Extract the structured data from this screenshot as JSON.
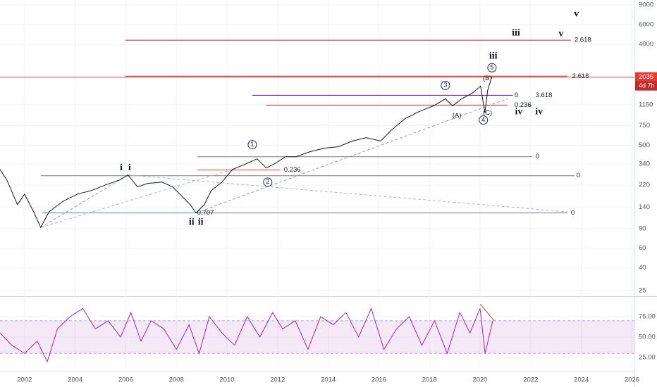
{
  "chart_data": {
    "type": "line",
    "log_scale": true,
    "color": "#131722",
    "xlim": [
      2001.03,
      2026.1
    ],
    "xticks": [
      2002,
      2004,
      2006,
      2008,
      2010,
      2012,
      2014,
      2016,
      2018,
      2020,
      2022,
      2024,
      2026
    ],
    "ylim": [
      22.3,
      9965
    ],
    "yticks": [
      9000,
      6000,
      4000,
      1150,
      750,
      500,
      340,
      220,
      140,
      90,
      60,
      40,
      25
    ],
    "grid": true,
    "x": [
      2001.03,
      2001.3,
      2001.72,
      2002.0,
      2002.36,
      2002.64,
      2002.97,
      2003.53,
      2004.09,
      2004.65,
      2005.2,
      2005.76,
      2006.09,
      2006.46,
      2006.87,
      2007.43,
      2007.85,
      2008.27,
      2008.55,
      2008.77,
      2009.1,
      2009.38,
      2009.8,
      2010.22,
      2010.77,
      2011.19,
      2011.55,
      2011.89,
      2012.31,
      2012.72,
      2013.28,
      2013.84,
      2014.4,
      2014.95,
      2015.51,
      2016.07,
      2016.48,
      2017.04,
      2017.6,
      2018.16,
      2018.63,
      2018.91,
      2019.27,
      2019.69,
      2020.02,
      2020.19,
      2020.3,
      2020.47
    ],
    "values": [
      304,
      245,
      147,
      183,
      127,
      92,
      127,
      158,
      183,
      197,
      221,
      245,
      271,
      212,
      228,
      234,
      212,
      170,
      147,
      124,
      147,
      197,
      234,
      304,
      342,
      378,
      313,
      342,
      395,
      395,
      438,
      471,
      485,
      545,
      585,
      545,
      677,
      867,
      1003,
      1127,
      1302,
      1127,
      1302,
      1462,
      1691,
      974,
      1550,
      2074
    ],
    "last_price": 2035,
    "countdown": "4d 7h",
    "levels": [
      {
        "x": [
          2005.98,
          2023.59
        ],
        "value": 4351,
        "color": "#c62828"
      },
      {
        "x": [
          2005.98,
          2023.45
        ],
        "value": 2074,
        "color": "#c62828"
      },
      {
        "x": [
          2011.0,
          2021.3
        ],
        "value": 1400,
        "color": "#4a148c"
      },
      {
        "x": [
          2011.55,
          2021.08
        ],
        "value": 1144,
        "color": "#c62828"
      },
      {
        "x": [
          2008.82,
          2022.06
        ],
        "value": 395,
        "color": "#787b86"
      },
      {
        "x": [
          2002.64,
          2023.73
        ],
        "value": 267,
        "color": "#787b86"
      },
      {
        "x": [
          2008.82,
          2012.11
        ],
        "value": 300,
        "color": "#e53935"
      },
      {
        "x": [
          2002.7,
          2008.96
        ],
        "value": 124,
        "color": "#26a69a"
      },
      {
        "x": [
          2008.96,
          2023.45
        ],
        "value": 124,
        "color": "#787b86"
      }
    ],
    "trendlines": [
      {
        "x": [
          2002.64,
          2006.09
        ],
        "values": [
          92,
          271
        ],
        "color": "#9598a1"
      },
      {
        "x": [
          2006.09,
          2023.45
        ],
        "values": [
          271,
          127
        ],
        "color": "#b2b5be"
      },
      {
        "x": [
          2008.77,
          2021.08
        ],
        "values": [
          124,
          1302
        ],
        "color": "#9598a1"
      },
      {
        "x": [
          2002.64,
          2010.22
        ],
        "values": [
          92,
          304
        ],
        "color": "#b2b5be"
      }
    ],
    "texts": [
      {
        "text": "2.618",
        "x": 2023.73,
        "y": 4351,
        "color": "#c62828"
      },
      {
        "text": "2.618",
        "x": 2023.64,
        "y": 2074,
        "color": "#c62828"
      },
      {
        "text": "0",
        "x": 2021.36,
        "y": 1400,
        "color": "#787b86"
      },
      {
        "text": "3.618",
        "x": 2022.19,
        "y": 1400,
        "color": "#ab47bc"
      },
      {
        "text": "0.236",
        "x": 2021.36,
        "y": 1144,
        "color": "#c62828"
      },
      {
        "text": "0",
        "x": 2022.19,
        "y": 395,
        "color": "#787b86"
      },
      {
        "text": "0",
        "x": 2023.81,
        "y": 267,
        "color": "#787b86"
      },
      {
        "text": "0.236",
        "x": 2012.25,
        "y": 300,
        "color": "#c62828"
      },
      {
        "text": "0.707",
        "x": 2008.82,
        "y": 124,
        "color": "#26a69a"
      },
      {
        "text": "0",
        "x": 2023.59,
        "y": 124,
        "color": "#787b86"
      },
      {
        "text": "i",
        "x": 2005.82,
        "y": 313,
        "color": "#1a237e",
        "bold": true
      },
      {
        "text": "i",
        "x": 2006.15,
        "y": 313,
        "color": "#c62828",
        "bold": true
      },
      {
        "text": "ii",
        "x": 2008.6,
        "y": 102,
        "color": "#1a237e",
        "bold": true
      },
      {
        "text": "ii",
        "x": 2008.96,
        "y": 102,
        "color": "#c62828",
        "bold": true
      },
      {
        "text": "1",
        "x": 2011.0,
        "y": 506,
        "color": "#1a237e",
        "circle": true
      },
      {
        "text": "2",
        "x": 2011.61,
        "y": 234,
        "color": "#1a237e",
        "circle": true
      },
      {
        "text": "3",
        "x": 2018.63,
        "y": 1716,
        "color": "#1a237e",
        "circle": true
      },
      {
        "text": "4",
        "x": 2020.13,
        "y": 842,
        "color": "#1a237e",
        "circle": true
      },
      {
        "text": "5",
        "x": 2020.47,
        "y": 2468,
        "color": "#1a237e",
        "circle": true
      },
      {
        "text": "(A)",
        "x": 2018.91,
        "y": 919,
        "color": "#3949ab"
      },
      {
        "text": "(B)",
        "x": 2020.11,
        "y": 1985,
        "color": "#3949ab"
      },
      {
        "text": "(C)",
        "x": 2020.11,
        "y": 974,
        "color": "#3949ab"
      },
      {
        "text": "iii",
        "x": 2020.52,
        "y": 3115,
        "color": "#1a237e",
        "bold": true
      },
      {
        "text": "iii",
        "x": 2021.42,
        "y": 5033,
        "color": "#c62828",
        "bold": true
      },
      {
        "text": "v",
        "x": 2023.2,
        "y": 4960,
        "color": "#1a237e",
        "bold": true
      },
      {
        "text": "v",
        "x": 2023.81,
        "y": 7450,
        "color": "#c62828",
        "bold": true
      },
      {
        "text": "iv",
        "x": 2021.53,
        "y": 988,
        "color": "#1a237e",
        "bold": true
      },
      {
        "text": "iv",
        "x": 2022.33,
        "y": 988,
        "color": "#c62828",
        "bold": true
      }
    ],
    "rsi": {
      "color": "#9c27b0",
      "ylim": [
        13,
        100
      ],
      "yticks": [
        {
          "value": 75,
          "label": "75.00"
        },
        {
          "value": 50,
          "label": "50.00"
        },
        {
          "value": 25,
          "label": "25.00"
        }
      ],
      "band": [
        30,
        70
      ],
      "x": [
        2001.03,
        2001.5,
        2002.0,
        2002.5,
        2002.9,
        2003.3,
        2003.8,
        2004.3,
        2004.8,
        2005.3,
        2005.8,
        2006.2,
        2006.6,
        2007.0,
        2007.5,
        2008.0,
        2008.5,
        2008.9,
        2009.3,
        2009.8,
        2010.3,
        2010.8,
        2011.3,
        2011.8,
        2012.2,
        2012.7,
        2013.2,
        2013.7,
        2014.2,
        2014.7,
        2015.2,
        2015.7,
        2016.2,
        2016.7,
        2017.2,
        2017.7,
        2018.2,
        2018.7,
        2019.2,
        2019.6,
        2020.0,
        2020.2,
        2020.5
      ],
      "values": [
        55,
        40,
        30,
        45,
        20,
        60,
        75,
        85,
        60,
        70,
        50,
        80,
        45,
        70,
        60,
        35,
        65,
        30,
        75,
        55,
        40,
        75,
        50,
        80,
        60,
        70,
        35,
        75,
        65,
        80,
        50,
        85,
        35,
        60,
        75,
        40,
        70,
        30,
        80,
        55,
        85,
        30,
        70
      ],
      "trendline": {
        "x": [
          2020.0,
          2020.56
        ],
        "values": [
          90.5,
          69.8
        ],
        "color": "#e53935"
      }
    }
  }
}
